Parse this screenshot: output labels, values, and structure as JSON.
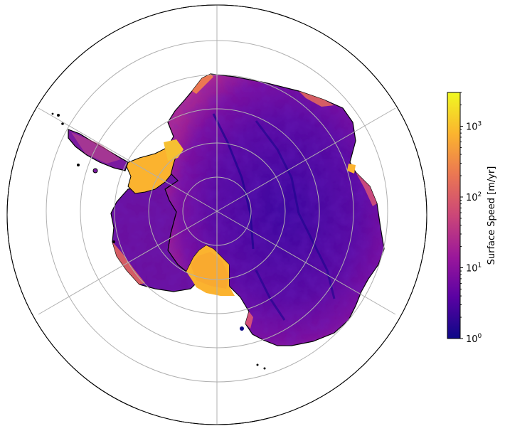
{
  "colorbar": {
    "label": "Surface Speed [m/yr]",
    "scale": "log",
    "range": [
      1,
      3000
    ],
    "ticks": [
      {
        "base": "10",
        "exp": "0",
        "value": 1
      },
      {
        "base": "10",
        "exp": "1",
        "value": 10
      },
      {
        "base": "10",
        "exp": "2",
        "value": 100
      },
      {
        "base": "10",
        "exp": "3",
        "value": 1000
      }
    ],
    "colormap": [
      "#0d0887",
      "#5b02a3",
      "#9a179b",
      "#cb4678",
      "#eb7852",
      "#fbb32f",
      "#f0f921"
    ]
  },
  "map": {
    "projection": "south-polar-stereographic",
    "graticule_rings": 5,
    "graticule_meridians": 6,
    "colors": {
      "interior": "#4d0ca0",
      "slow": "#2a0593",
      "fast": "#fbb32f",
      "medium": "#c4388a",
      "coastline": "#000000",
      "grid": "#b0b0b0"
    }
  }
}
